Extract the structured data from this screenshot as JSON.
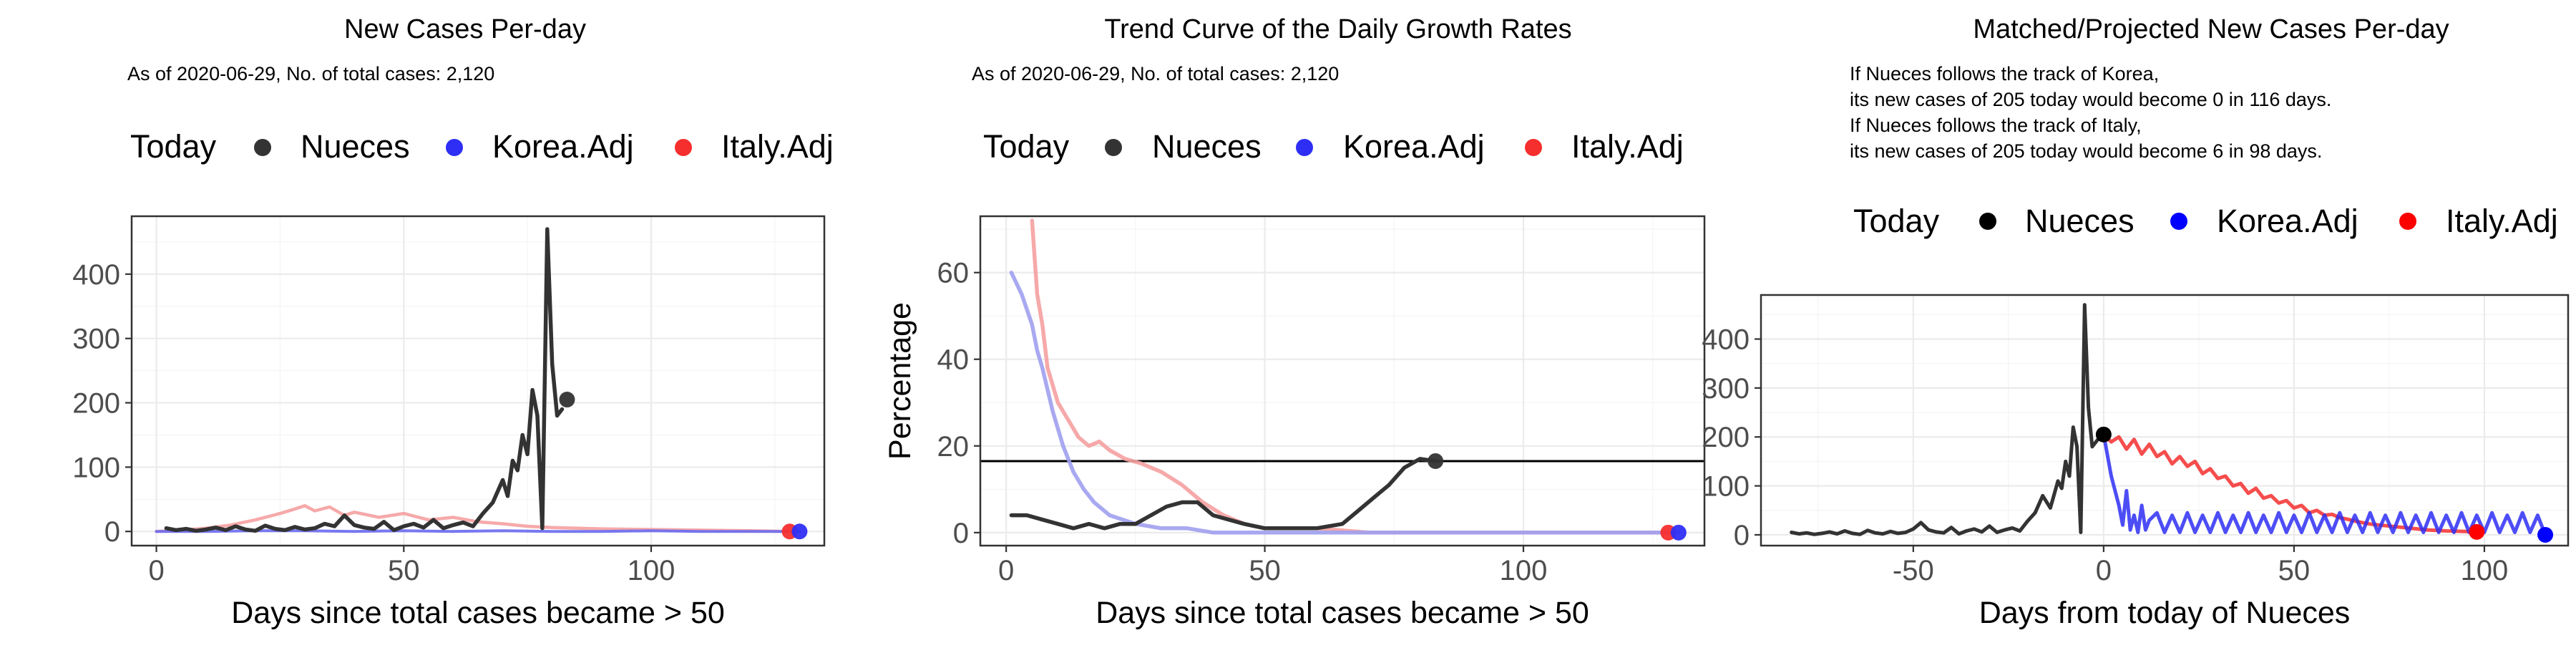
{
  "legend": {
    "title": "Today",
    "items": [
      {
        "label": "Nueces",
        "color": "#333333"
      },
      {
        "label": "Korea.Adj",
        "color": "#2e2ef5"
      },
      {
        "label": "Italy.Adj",
        "color": "#f52e2e"
      }
    ],
    "third_panel_items": [
      {
        "label": "Nueces",
        "color": "#000000"
      },
      {
        "label": "Korea.Adj",
        "color": "#0000ff"
      },
      {
        "label": "Italy.Adj",
        "color": "#ff0000"
      }
    ]
  },
  "chart_data": [
    {
      "type": "line",
      "title": "New Cases Per-day",
      "subtitle": "As of 2020-06-29, No. of total cases: 2,120",
      "xlabel": "Days since total cases became > 50",
      "ylabel": "",
      "xlim": [
        -5,
        135
      ],
      "ylim": [
        -22,
        490
      ],
      "xticks": [
        0,
        50,
        100
      ],
      "yticks": [
        0,
        100,
        200,
        300,
        400
      ],
      "grid": true,
      "legend_position": "top",
      "series": [
        {
          "name": "Nueces",
          "color": "#333333",
          "x": [
            2,
            4,
            6,
            8,
            10,
            12,
            14,
            16,
            18,
            20,
            22,
            24,
            26,
            28,
            30,
            32,
            34,
            36,
            38,
            40,
            42,
            44,
            46,
            48,
            50,
            52,
            54,
            56,
            58,
            60,
            62,
            64,
            66,
            68,
            70,
            71,
            72,
            73,
            74,
            75,
            76,
            77,
            78,
            79,
            80,
            81,
            82
          ],
          "y": [
            5,
            2,
            4,
            1,
            3,
            6,
            2,
            8,
            3,
            1,
            9,
            4,
            2,
            7,
            3,
            5,
            12,
            8,
            25,
            10,
            6,
            4,
            15,
            2,
            8,
            12,
            6,
            18,
            5,
            10,
            14,
            8,
            28,
            45,
            80,
            55,
            110,
            95,
            150,
            120,
            220,
            180,
            5,
            470,
            260,
            180,
            190
          ]
        },
        {
          "name": "Korea.Adj",
          "color": "#6a6af0",
          "x": [
            0,
            10,
            20,
            30,
            40,
            50,
            60,
            70,
            80,
            90,
            100,
            110,
            120,
            130
          ],
          "y": [
            0,
            0,
            1,
            1,
            0,
            1,
            0,
            1,
            0,
            0,
            1,
            0,
            0,
            0
          ]
        },
        {
          "name": "Italy.Adj",
          "color": "#f5a0a0",
          "x": [
            0,
            5,
            10,
            15,
            20,
            25,
            28,
            30,
            32,
            35,
            38,
            40,
            45,
            50,
            55,
            60,
            65,
            70,
            75,
            80,
            90,
            100,
            110,
            120,
            128
          ],
          "y": [
            0,
            2,
            5,
            10,
            18,
            28,
            35,
            40,
            32,
            38,
            25,
            30,
            22,
            28,
            18,
            22,
            15,
            12,
            8,
            6,
            4,
            3,
            2,
            1,
            0
          ]
        }
      ],
      "today_points": [
        {
          "series": "Nueces",
          "x": 83,
          "y": 205
        },
        {
          "series": "Italy.Adj",
          "x": 128,
          "y": 0
        },
        {
          "series": "Korea.Adj",
          "x": 130,
          "y": 0
        }
      ]
    },
    {
      "type": "line",
      "title": "Trend Curve of the Daily Growth Rates",
      "subtitle": "As of 2020-06-29, No. of total cases: 2,120",
      "xlabel": "Days since total cases became > 50",
      "ylabel": "Percentage",
      "xlim": [
        -5,
        135
      ],
      "ylim": [
        -3,
        73
      ],
      "xticks": [
        0,
        50,
        100
      ],
      "yticks": [
        0,
        20,
        40,
        60
      ],
      "hline": 16.5,
      "grid": true,
      "legend_position": "top",
      "series": [
        {
          "name": "Nueces",
          "color": "#333333",
          "x": [
            1,
            4,
            7,
            10,
            13,
            16,
            19,
            22,
            25,
            28,
            31,
            34,
            37,
            40,
            43,
            46,
            50,
            55,
            60,
            65,
            68,
            71,
            74,
            77,
            80,
            83
          ],
          "y": [
            4,
            4,
            3,
            2,
            1,
            2,
            1,
            2,
            2,
            4,
            6,
            7,
            7,
            4,
            3,
            2,
            1,
            1,
            1,
            2,
            5,
            8,
            11,
            15,
            17,
            16.5
          ]
        },
        {
          "name": "Korea.Adj",
          "color": "#a0a0f0",
          "x": [
            1,
            3,
            5,
            6,
            7,
            9,
            11,
            13,
            15,
            17,
            20,
            25,
            30,
            35,
            40,
            50,
            60,
            80,
            100,
            120,
            130
          ],
          "y": [
            60,
            55,
            48,
            42,
            38,
            28,
            20,
            14,
            10,
            7,
            4,
            2,
            1,
            1,
            0,
            0,
            0,
            0,
            0,
            0,
            0
          ]
        },
        {
          "name": "Italy.Adj",
          "color": "#f5a0a0",
          "x": [
            5,
            6,
            7,
            8,
            10,
            12,
            14,
            16,
            18,
            20,
            23,
            26,
            30,
            34,
            38,
            42,
            46,
            50,
            60,
            70,
            80,
            100,
            120,
            128
          ],
          "y": [
            72,
            55,
            48,
            38,
            30,
            26,
            22,
            20,
            21,
            19,
            17,
            16,
            14,
            11,
            7,
            4,
            2,
            1,
            1,
            0,
            0,
            0,
            0,
            0
          ]
        }
      ],
      "today_points": [
        {
          "series": "Nueces",
          "x": 83,
          "y": 16.5
        },
        {
          "series": "Italy.Adj",
          "x": 128,
          "y": 0
        },
        {
          "series": "Korea.Adj",
          "x": 130,
          "y": 0
        }
      ]
    },
    {
      "type": "line",
      "title": "Matched/Projected New Cases Per-day",
      "notes": [
        "If Nueces follows the track of Korea,",
        "its new cases of 205 today would become 0 in 116 days.",
        "If Nueces follows the track of Italy,",
        "its new cases of 205 today would become 6 in 98 days."
      ],
      "xlabel": "Days from today of Nueces",
      "ylabel": "",
      "xlim": [
        -90,
        122
      ],
      "ylim": [
        -22,
        490
      ],
      "xticks": [
        -50,
        0,
        50,
        100
      ],
      "yticks": [
        0,
        100,
        200,
        300,
        400
      ],
      "grid": true,
      "legend_position": "top",
      "series": [
        {
          "name": "Nueces",
          "color": "#333333",
          "x": [
            -82,
            -80,
            -78,
            -76,
            -74,
            -72,
            -70,
            -68,
            -66,
            -64,
            -62,
            -60,
            -58,
            -56,
            -54,
            -52,
            -50,
            -48,
            -46,
            -44,
            -42,
            -40,
            -38,
            -36,
            -34,
            -32,
            -30,
            -28,
            -26,
            -24,
            -22,
            -20,
            -18,
            -16,
            -14,
            -12,
            -11,
            -10,
            -9,
            -8,
            -7,
            -6,
            -5,
            -4,
            -3,
            -2,
            -1,
            0
          ],
          "y": [
            5,
            2,
            4,
            1,
            3,
            6,
            2,
            8,
            3,
            1,
            9,
            4,
            2,
            7,
            3,
            5,
            12,
            25,
            10,
            6,
            4,
            15,
            2,
            8,
            12,
            6,
            18,
            5,
            10,
            14,
            8,
            28,
            45,
            80,
            55,
            110,
            95,
            150,
            120,
            220,
            180,
            5,
            470,
            260,
            180,
            190,
            200,
            205
          ]
        },
        {
          "name": "Korea.Adj",
          "color": "#2e2ef5",
          "x": [
            0,
            2,
            4,
            5,
            6,
            7,
            8,
            9,
            10,
            11,
            12,
            14,
            16,
            18,
            20,
            22,
            24,
            26,
            28,
            30,
            32,
            34,
            36,
            38,
            40,
            42,
            44,
            46,
            48,
            50,
            52,
            54,
            56,
            58,
            60,
            62,
            64,
            66,
            68,
            70,
            72,
            74,
            76,
            78,
            80,
            82,
            84,
            86,
            88,
            90,
            92,
            94,
            96,
            98,
            100,
            102,
            104,
            106,
            108,
            110,
            112,
            114,
            116
          ],
          "y": [
            205,
            120,
            60,
            20,
            90,
            10,
            40,
            5,
            60,
            10,
            30,
            45,
            5,
            40,
            5,
            45,
            5,
            40,
            5,
            45,
            5,
            40,
            5,
            45,
            5,
            40,
            5,
            45,
            5,
            40,
            5,
            45,
            5,
            40,
            5,
            45,
            5,
            40,
            5,
            45,
            5,
            40,
            5,
            45,
            5,
            40,
            5,
            45,
            5,
            40,
            5,
            45,
            5,
            40,
            5,
            45,
            5,
            40,
            5,
            45,
            5,
            40,
            0
          ]
        },
        {
          "name": "Italy.Adj",
          "color": "#f52e2e",
          "x": [
            0,
            2,
            4,
            6,
            8,
            10,
            12,
            14,
            16,
            18,
            20,
            22,
            24,
            26,
            28,
            30,
            32,
            34,
            36,
            38,
            40,
            42,
            44,
            46,
            48,
            50,
            52,
            54,
            56,
            58,
            60,
            62,
            64,
            66,
            68,
            70,
            75,
            80,
            85,
            90,
            95,
            98
          ],
          "y": [
            205,
            190,
            200,
            175,
            195,
            165,
            185,
            160,
            170,
            145,
            160,
            140,
            150,
            125,
            135,
            115,
            120,
            100,
            105,
            85,
            95,
            75,
            80,
            65,
            70,
            55,
            60,
            45,
            50,
            40,
            42,
            35,
            32,
            28,
            25,
            22,
            18,
            14,
            10,
            8,
            7,
            6
          ]
        }
      ],
      "today_points": [
        {
          "series": "Nueces",
          "x": 0,
          "y": 205
        },
        {
          "series": "Italy.Adj",
          "x": 98,
          "y": 6
        },
        {
          "series": "Korea.Adj",
          "x": 116,
          "y": 0
        }
      ]
    }
  ]
}
